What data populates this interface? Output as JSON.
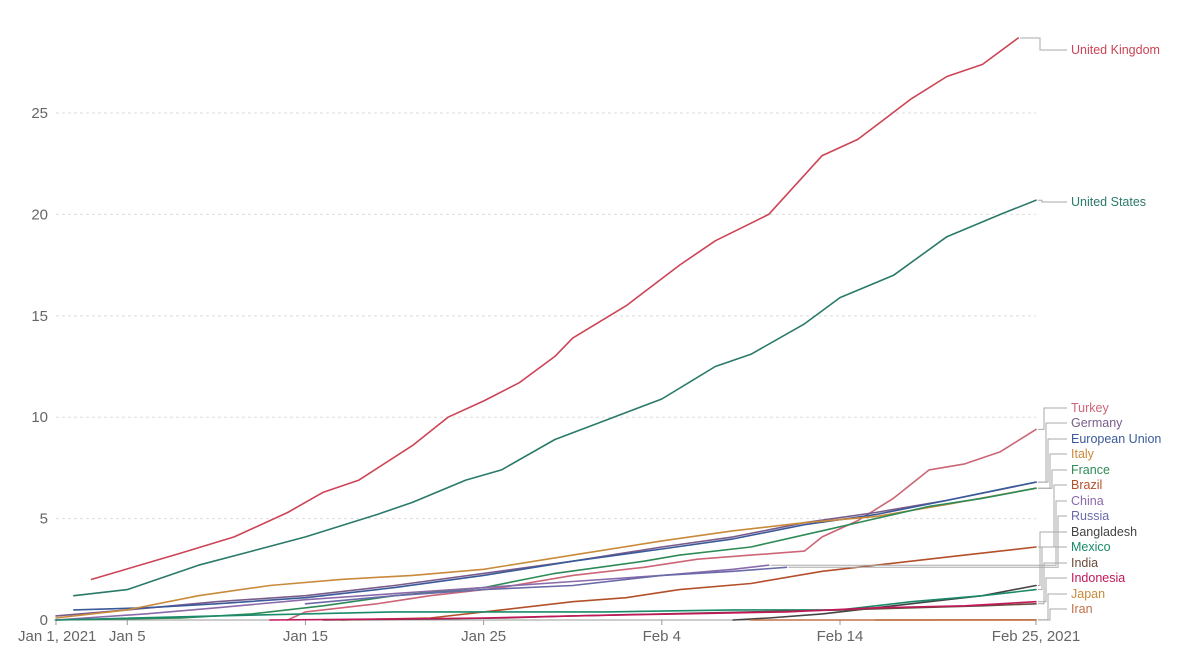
{
  "chart_data": {
    "type": "line",
    "title": "",
    "xlabel": "",
    "ylabel": "",
    "x_start": "2021-01-01",
    "x_end": "2021-02-25",
    "x_ticks": [
      "Jan 1, 2021",
      "Jan 5",
      "Jan 15",
      "Jan 25",
      "Feb 4",
      "Feb 14",
      "Feb 25, 2021"
    ],
    "x_tick_dates": [
      "2021-01-01",
      "2021-01-05",
      "2021-01-15",
      "2021-01-25",
      "2021-02-04",
      "2021-02-14",
      "2021-02-25"
    ],
    "y_ticks": [
      "0",
      "5",
      "10",
      "15",
      "20",
      "25"
    ],
    "ylim": [
      0,
      28.7
    ],
    "grid": true,
    "legend": "direct labels right",
    "series": [
      {
        "name": "United Kingdom",
        "color": "#cc4455",
        "points": [
          [
            "2021-01-03",
            2.0
          ],
          [
            "2021-01-08",
            3.3
          ],
          [
            "2021-01-11",
            4.1
          ],
          [
            "2021-01-14",
            5.3
          ],
          [
            "2021-01-16",
            6.3
          ],
          [
            "2021-01-18",
            6.9
          ],
          [
            "2021-01-21",
            8.6
          ],
          [
            "2021-01-23",
            10.0
          ],
          [
            "2021-01-25",
            10.8
          ],
          [
            "2021-01-27",
            11.7
          ],
          [
            "2021-01-29",
            13.0
          ],
          [
            "2021-01-30",
            13.9
          ],
          [
            "2021-02-02",
            15.5
          ],
          [
            "2021-02-05",
            17.5
          ],
          [
            "2021-02-07",
            18.7
          ],
          [
            "2021-02-10",
            20.0
          ],
          [
            "2021-02-13",
            22.9
          ],
          [
            "2021-02-15",
            23.7
          ],
          [
            "2021-02-18",
            25.7
          ],
          [
            "2021-02-20",
            26.8
          ],
          [
            "2021-02-22",
            27.4
          ],
          [
            "2021-02-24",
            28.7
          ]
        ]
      },
      {
        "name": "United States",
        "color": "#2a7a6a",
        "points": [
          [
            "2021-01-02",
            1.2
          ],
          [
            "2021-01-05",
            1.5
          ],
          [
            "2021-01-09",
            2.7
          ],
          [
            "2021-01-12",
            3.4
          ],
          [
            "2021-01-15",
            4.1
          ],
          [
            "2021-01-19",
            5.2
          ],
          [
            "2021-01-21",
            5.8
          ],
          [
            "2021-01-24",
            6.9
          ],
          [
            "2021-01-26",
            7.4
          ],
          [
            "2021-01-29",
            8.9
          ],
          [
            "2021-02-01",
            9.9
          ],
          [
            "2021-02-04",
            10.9
          ],
          [
            "2021-02-07",
            12.5
          ],
          [
            "2021-02-09",
            13.1
          ],
          [
            "2021-02-12",
            14.6
          ],
          [
            "2021-02-14",
            15.9
          ],
          [
            "2021-02-17",
            17.0
          ],
          [
            "2021-02-20",
            18.9
          ],
          [
            "2021-02-23",
            20.0
          ],
          [
            "2021-02-25",
            20.7
          ]
        ]
      },
      {
        "name": "Turkey",
        "color": "#cc6677",
        "points": [
          [
            "2021-01-14",
            0.0
          ],
          [
            "2021-01-15",
            0.4
          ],
          [
            "2021-01-19",
            0.8
          ],
          [
            "2021-01-22",
            1.2
          ],
          [
            "2021-01-26",
            1.6
          ],
          [
            "2021-01-30",
            2.2
          ],
          [
            "2021-02-03",
            2.6
          ],
          [
            "2021-02-06",
            3.0
          ],
          [
            "2021-02-09",
            3.2
          ],
          [
            "2021-02-12",
            3.4
          ],
          [
            "2021-02-13",
            4.1
          ],
          [
            "2021-02-15",
            4.9
          ],
          [
            "2021-02-17",
            6.0
          ],
          [
            "2021-02-19",
            7.4
          ],
          [
            "2021-02-21",
            7.7
          ],
          [
            "2021-02-23",
            8.3
          ],
          [
            "2021-02-25",
            9.4
          ]
        ]
      },
      {
        "name": "Germany",
        "color": "#7a5c8a",
        "points": [
          [
            "2021-01-01",
            0.2
          ],
          [
            "2021-01-05",
            0.5
          ],
          [
            "2021-01-10",
            0.9
          ],
          [
            "2021-01-15",
            1.2
          ],
          [
            "2021-01-20",
            1.7
          ],
          [
            "2021-01-25",
            2.3
          ],
          [
            "2021-01-30",
            2.9
          ],
          [
            "2021-02-04",
            3.6
          ],
          [
            "2021-02-08",
            4.1
          ],
          [
            "2021-02-12",
            4.8
          ],
          [
            "2021-02-16",
            5.3
          ],
          [
            "2021-02-20",
            5.9
          ],
          [
            "2021-02-25",
            6.8
          ]
        ]
      },
      {
        "name": "European Union",
        "color": "#3a5a9a",
        "points": [
          [
            "2021-01-02",
            0.5
          ],
          [
            "2021-01-06",
            0.6
          ],
          [
            "2021-01-10",
            0.8
          ],
          [
            "2021-01-15",
            1.1
          ],
          [
            "2021-01-20",
            1.6
          ],
          [
            "2021-01-25",
            2.2
          ],
          [
            "2021-01-30",
            2.9
          ],
          [
            "2021-02-04",
            3.5
          ],
          [
            "2021-02-08",
            4.0
          ],
          [
            "2021-02-12",
            4.7
          ],
          [
            "2021-02-16",
            5.2
          ],
          [
            "2021-02-20",
            5.9
          ],
          [
            "2021-02-25",
            6.8
          ]
        ]
      },
      {
        "name": "Italy",
        "color": "#c98a3a",
        "points": [
          [
            "2021-01-01",
            0.1
          ],
          [
            "2021-01-05",
            0.5
          ],
          [
            "2021-01-09",
            1.2
          ],
          [
            "2021-01-13",
            1.7
          ],
          [
            "2021-01-17",
            2.0
          ],
          [
            "2021-01-21",
            2.2
          ],
          [
            "2021-01-25",
            2.5
          ],
          [
            "2021-01-30",
            3.2
          ],
          [
            "2021-02-04",
            3.9
          ],
          [
            "2021-02-08",
            4.4
          ],
          [
            "2021-02-12",
            4.8
          ],
          [
            "2021-02-16",
            5.1
          ],
          [
            "2021-02-20",
            5.7
          ],
          [
            "2021-02-25",
            6.5
          ]
        ]
      },
      {
        "name": "France",
        "color": "#2e8b57",
        "points": [
          [
            "2021-01-01",
            0.0
          ],
          [
            "2021-01-08",
            0.1
          ],
          [
            "2021-01-12",
            0.3
          ],
          [
            "2021-01-16",
            0.7
          ],
          [
            "2021-01-20",
            1.2
          ],
          [
            "2021-01-25",
            1.6
          ],
          [
            "2021-01-29",
            2.3
          ],
          [
            "2021-02-03",
            2.9
          ],
          [
            "2021-02-05",
            3.2
          ],
          [
            "2021-02-09",
            3.6
          ],
          [
            "2021-02-13",
            4.4
          ],
          [
            "2021-02-16",
            5.0
          ],
          [
            "2021-02-19",
            5.6
          ],
          [
            "2021-02-22",
            6.0
          ],
          [
            "2021-02-25",
            6.5
          ]
        ]
      },
      {
        "name": "Brazil",
        "color": "#b3502a",
        "points": [
          [
            "2021-01-17",
            0.0
          ],
          [
            "2021-01-22",
            0.1
          ],
          [
            "2021-01-26",
            0.5
          ],
          [
            "2021-01-30",
            0.9
          ],
          [
            "2021-02-02",
            1.1
          ],
          [
            "2021-02-05",
            1.5
          ],
          [
            "2021-02-09",
            1.8
          ],
          [
            "2021-02-13",
            2.4
          ],
          [
            "2021-02-17",
            2.8
          ],
          [
            "2021-02-21",
            3.2
          ],
          [
            "2021-02-25",
            3.6
          ]
        ]
      },
      {
        "name": "China",
        "color": "#8a6aaa",
        "points": [
          [
            "2021-01-01",
            0.0
          ],
          [
            "2021-01-06",
            0.3
          ],
          [
            "2021-01-10",
            0.6
          ],
          [
            "2021-01-15",
            1.0
          ],
          [
            "2021-01-20",
            1.3
          ],
          [
            "2021-01-25",
            1.6
          ],
          [
            "2021-01-30",
            1.9
          ],
          [
            "2021-02-04",
            2.2
          ],
          [
            "2021-02-08",
            2.5
          ],
          [
            "2021-02-10",
            2.7
          ]
        ]
      },
      {
        "name": "Russia",
        "color": "#6a6aaa",
        "points": [
          [
            "2021-01-15",
            0.8
          ],
          [
            "2021-01-20",
            1.2
          ],
          [
            "2021-01-25",
            1.5
          ],
          [
            "2021-01-30",
            1.7
          ],
          [
            "2021-02-04",
            2.2
          ],
          [
            "2021-02-08",
            2.4
          ],
          [
            "2021-02-11",
            2.6
          ]
        ]
      },
      {
        "name": "Bangladesh",
        "color": "#444444",
        "points": [
          [
            "2021-02-08",
            0.0
          ],
          [
            "2021-02-10",
            0.1
          ],
          [
            "2021-02-13",
            0.3
          ],
          [
            "2021-02-16",
            0.6
          ],
          [
            "2021-02-19",
            0.9
          ],
          [
            "2021-02-22",
            1.2
          ],
          [
            "2021-02-25",
            1.7
          ]
        ]
      },
      {
        "name": "Mexico",
        "color": "#1a8a6a",
        "points": [
          [
            "2021-01-01",
            0.0
          ],
          [
            "2021-01-10",
            0.2
          ],
          [
            "2021-01-15",
            0.3
          ],
          [
            "2021-01-20",
            0.4
          ],
          [
            "2021-01-25",
            0.4
          ],
          [
            "2021-02-01",
            0.4
          ],
          [
            "2021-02-08",
            0.5
          ],
          [
            "2021-02-14",
            0.5
          ],
          [
            "2021-02-18",
            0.9
          ],
          [
            "2021-02-22",
            1.2
          ],
          [
            "2021-02-25",
            1.5
          ]
        ]
      },
      {
        "name": "India",
        "color": "#6a4a3a",
        "points": [
          [
            "2021-01-16",
            0.0
          ],
          [
            "2021-01-22",
            0.05
          ],
          [
            "2021-01-26",
            0.1
          ],
          [
            "2021-01-30",
            0.2
          ],
          [
            "2021-02-04",
            0.3
          ],
          [
            "2021-02-09",
            0.4
          ],
          [
            "2021-02-14",
            0.5
          ],
          [
            "2021-02-18",
            0.6
          ],
          [
            "2021-02-22",
            0.7
          ],
          [
            "2021-02-25",
            0.8
          ]
        ]
      },
      {
        "name": "Indonesia",
        "color": "#c2185b",
        "points": [
          [
            "2021-01-13",
            0.0
          ],
          [
            "2021-01-20",
            0.05
          ],
          [
            "2021-01-25",
            0.1
          ],
          [
            "2021-01-30",
            0.2
          ],
          [
            "2021-02-05",
            0.3
          ],
          [
            "2021-02-11",
            0.4
          ],
          [
            "2021-02-16",
            0.6
          ],
          [
            "2021-02-21",
            0.7
          ],
          [
            "2021-02-25",
            0.9
          ]
        ]
      },
      {
        "name": "Japan",
        "color": "#c98a3a",
        "points": [
          [
            "2021-02-16",
            0.0
          ],
          [
            "2021-02-25",
            0.01
          ]
        ]
      },
      {
        "name": "Iran",
        "color": "#c0704a",
        "points": [
          [
            "2021-02-09",
            0.0
          ],
          [
            "2021-02-25",
            0.0
          ]
        ]
      }
    ]
  }
}
